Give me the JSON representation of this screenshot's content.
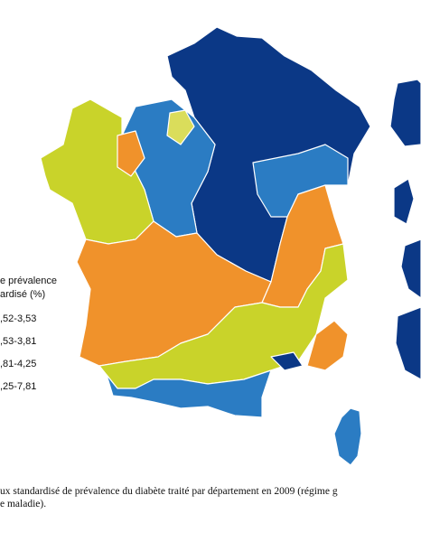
{
  "legend": {
    "title": [
      "e prévalence",
      "ardisé (%)"
    ],
    "items": [
      {
        "label": ",52-3,53",
        "color": "#c9d32a"
      },
      {
        "label": ",53-3,81",
        "color": "#f0922b"
      },
      {
        "label": ",81-4,25",
        "color": "#2b7cc3"
      },
      {
        "label": ",25-7,81",
        "color": "#0b3886"
      }
    ]
  },
  "caption": [
    "ux standardisé de prévalence du diabète traité par département en 2009 (régime g",
    "e maladie)."
  ]
}
